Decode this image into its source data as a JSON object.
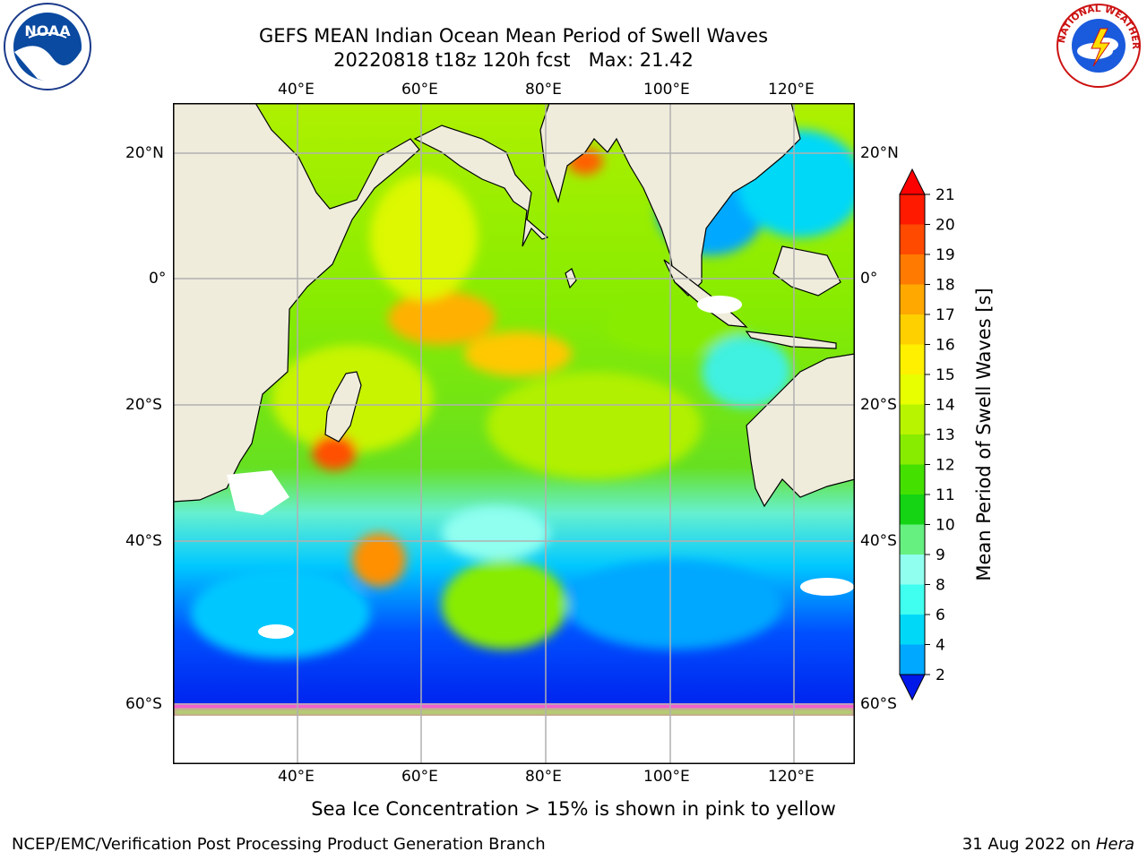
{
  "title_line1": "GEFS MEAN Indian Ocean Mean Period of Swell Waves",
  "title_line2": "20220818 t18z 120h fcst   Max: 21.42",
  "lon_ticks": [
    "40°E",
    "60°E",
    "80°E",
    "100°E",
    "120°E"
  ],
  "lat_ticks": [
    "20°N",
    "0°",
    "20°S",
    "40°S",
    "60°S"
  ],
  "colorbar": {
    "label": "Mean Period of Swell Waves [s]",
    "ticks": [
      "21",
      "20",
      "19",
      "18",
      "17",
      "16",
      "15",
      "14",
      "13",
      "12",
      "11",
      "10",
      "9",
      "8",
      "6",
      "4",
      "2"
    ],
    "colors": [
      "#ff1a00",
      "#ff4a00",
      "#ff7a00",
      "#ffa800",
      "#ffd000",
      "#fff000",
      "#e8ff00",
      "#b8f400",
      "#88ec00",
      "#44e000",
      "#14d414",
      "#66f080",
      "#90fff0",
      "#40fff0",
      "#00d8f8",
      "#00a8ff",
      "#0050ff"
    ],
    "under_color": "#0018e8",
    "over_color": "#ff0000"
  },
  "sea_ice_note": "Sea Ice Concentration > 15% is shown in pink to yellow",
  "footer_left": "NCEP/EMC/Verification Post Processing Product Generation Branch",
  "footer_right_prefix": "31 Aug 2022 on ",
  "footer_right_system": "Hera",
  "logos": {
    "left": "NOAA",
    "right_text": "NATIONAL WEATHER SERVICE"
  }
}
